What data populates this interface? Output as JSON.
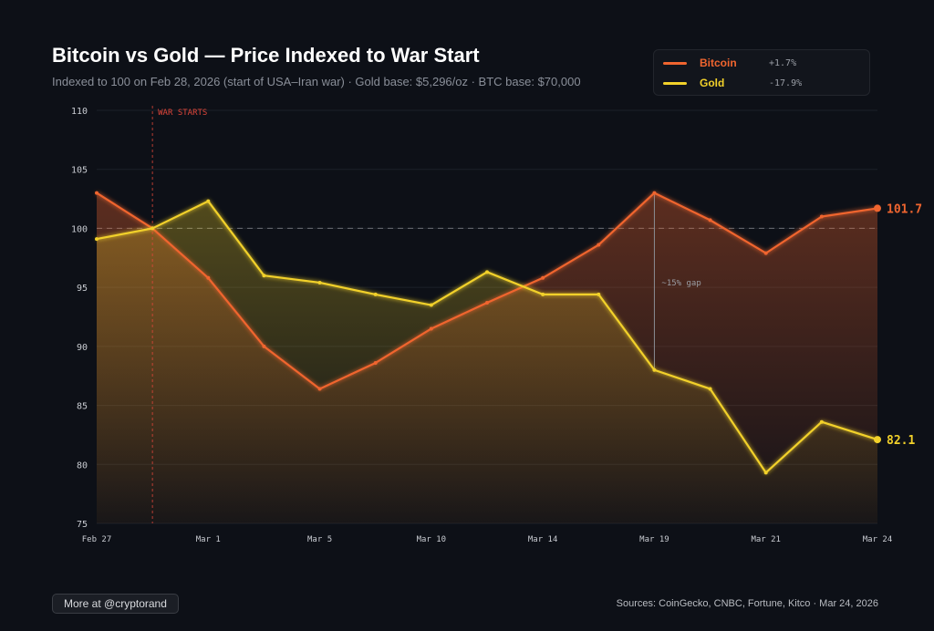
{
  "chart_data": {
    "type": "line",
    "title": "Bitcoin vs Gold — Price Indexed to War Start",
    "subtitle": "Indexed to 100 on Feb 28, 2026 (start of USA–Iran war) · Gold base: $5,296/oz · BTC base: $70,000",
    "xlabel": "",
    "ylabel": "",
    "ylim": [
      75,
      110
    ],
    "y_ticks": [
      75,
      80,
      85,
      90,
      95,
      100,
      105,
      110
    ],
    "x_tick_labels": [
      "Feb 27",
      "Mar 1",
      "Mar 5",
      "Mar 10",
      "Mar 14",
      "Mar 19",
      "Mar 21",
      "Mar 24"
    ],
    "grid": true,
    "baseline": 100,
    "legend_position": "top-right",
    "series": [
      {
        "name": "Bitcoin",
        "change": "+1.7%",
        "color": "#f0652f",
        "end_label": "101.7",
        "values": [
          103.0,
          100.0,
          95.8,
          90.0,
          86.4,
          88.6,
          91.5,
          93.7,
          95.8,
          98.6,
          103.0,
          100.7,
          97.9,
          101.0,
          101.7
        ]
      },
      {
        "name": "Gold",
        "change": "-17.9%",
        "color": "#f2d12a",
        "end_label": "82.1",
        "values": [
          99.1,
          100.0,
          102.3,
          96.0,
          95.4,
          94.4,
          93.5,
          96.3,
          94.4,
          94.4,
          88.0,
          86.4,
          79.3,
          83.6,
          82.1
        ]
      }
    ],
    "annotations": {
      "war_start": {
        "label": "WAR STARTS",
        "point_index": 1,
        "color": "#e0463a"
      },
      "gap": {
        "label": "~15% gap",
        "point_index": 10
      }
    }
  },
  "footer": {
    "more_button": "More at @cryptorand",
    "sources": "Sources: CoinGecko, CNBC, Fortune, Kitco · Mar 24, 2026"
  }
}
